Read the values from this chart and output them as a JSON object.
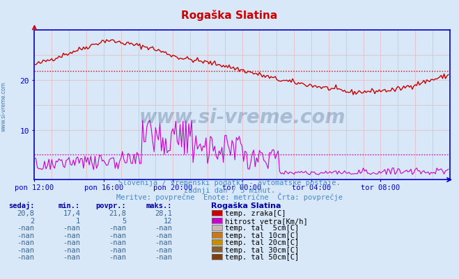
{
  "title": "Rogaška Slatina",
  "title_color": "#cc0000",
  "bg_color": "#d8e8f8",
  "plot_bg_color": "#d8e8f8",
  "axis_color": "#0000cc",
  "tick_color": "#336699",
  "xlim": [
    0,
    288
  ],
  "ylim": [
    0,
    30
  ],
  "yticks": [
    10,
    20
  ],
  "xtick_labels": [
    "pon 12:00",
    "pon 16:00",
    "pon 20:00",
    "tor 00:00",
    "tor 04:00",
    "tor 08:00"
  ],
  "xtick_positions": [
    0,
    48,
    96,
    144,
    192,
    240
  ],
  "avg_temp": 21.8,
  "avg_wind": 5,
  "temp_color": "#cc0000",
  "wind_color": "#cc00cc",
  "watermark": "www.si-vreme.com",
  "subtitle1": "Slovenija / vremenski podatki - avtomatske postaje.",
  "subtitle2": "zadnji dan / 5 minut.",
  "subtitle3": "Meritve: povprečne  Enote: metrične  Črta: povprečje",
  "subtitle_color": "#4488cc",
  "table_header_color": "#0000aa",
  "table_data_color": "#336699",
  "legend_items": [
    {
      "label": "temp. zraka[C]",
      "color": "#cc0000"
    },
    {
      "label": "hitrost vetra[Km/h]",
      "color": "#cc00cc"
    },
    {
      "label": "temp. tal  5cm[C]",
      "color": "#c8b8b8"
    },
    {
      "label": "temp. tal 10cm[C]",
      "color": "#c87820"
    },
    {
      "label": "temp. tal 20cm[C]",
      "color": "#c89000"
    },
    {
      "label": "temp. tal 30cm[C]",
      "color": "#886030"
    },
    {
      "label": "temp. tal 50cm[C]",
      "color": "#804010"
    }
  ],
  "table_cols": [
    "sedaj:",
    "min.:",
    "povpr.:",
    "maks.:"
  ],
  "table_rows": [
    [
      "20,8",
      "17,4",
      "21,8",
      "28,1"
    ],
    [
      "2",
      "1",
      "5",
      "12"
    ],
    [
      "-nan",
      "-nan",
      "-nan",
      "-nan"
    ],
    [
      "-nan",
      "-nan",
      "-nan",
      "-nan"
    ],
    [
      "-nan",
      "-nan",
      "-nan",
      "-nan"
    ],
    [
      "-nan",
      "-nan",
      "-nan",
      "-nan"
    ],
    [
      "-nan",
      "-nan",
      "-nan",
      "-nan"
    ]
  ]
}
